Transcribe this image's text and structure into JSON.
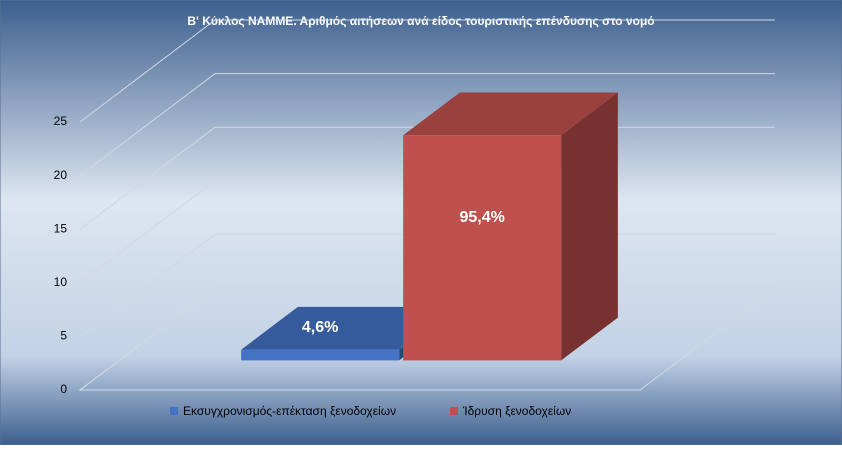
{
  "chart_data": {
    "type": "bar3d",
    "title": "Β' Κύκλος ΝΑΜΜΕ. Αριθμός αιτήσεων ανά είδος τουριστικής επένδυσης στο νομό",
    "categories": [
      "Εκσυγχρονισμός-επέκταση ξενοδοχείων",
      "Ίδρυση ξενοδοχείων"
    ],
    "values": [
      1,
      21
    ],
    "percent_labels": [
      "4,6%",
      "95,4%"
    ],
    "colors": [
      "#4472c4",
      "#c0504d"
    ],
    "ylim": [
      0,
      25
    ],
    "yticks": [
      0,
      5,
      10,
      15,
      20,
      25
    ],
    "grid": true,
    "legend": "bottom"
  }
}
